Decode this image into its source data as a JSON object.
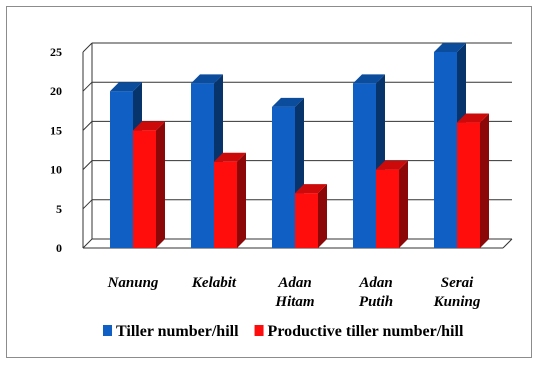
{
  "chart_data": {
    "type": "bar",
    "style": "3d-clustered-column",
    "categories": [
      [
        "Nanung"
      ],
      [
        "Kelabit"
      ],
      [
        "Adan",
        "Hitam"
      ],
      [
        "Adan",
        "Putih"
      ],
      [
        "Serai",
        "Kuning"
      ]
    ],
    "series": [
      {
        "name": "Tiller number/hill",
        "values": [
          20,
          21,
          18,
          21,
          25
        ],
        "color": "#0f5fc4"
      },
      {
        "name": "Productive tiller number/hill",
        "values": [
          15,
          11,
          7,
          10,
          16
        ],
        "color": "#ff0d0d"
      }
    ],
    "ylim": [
      0,
      25
    ],
    "yticks": [
      "0",
      "5",
      "10",
      "15",
      "20",
      "25"
    ],
    "grid": true,
    "legend_position": "bottom"
  }
}
